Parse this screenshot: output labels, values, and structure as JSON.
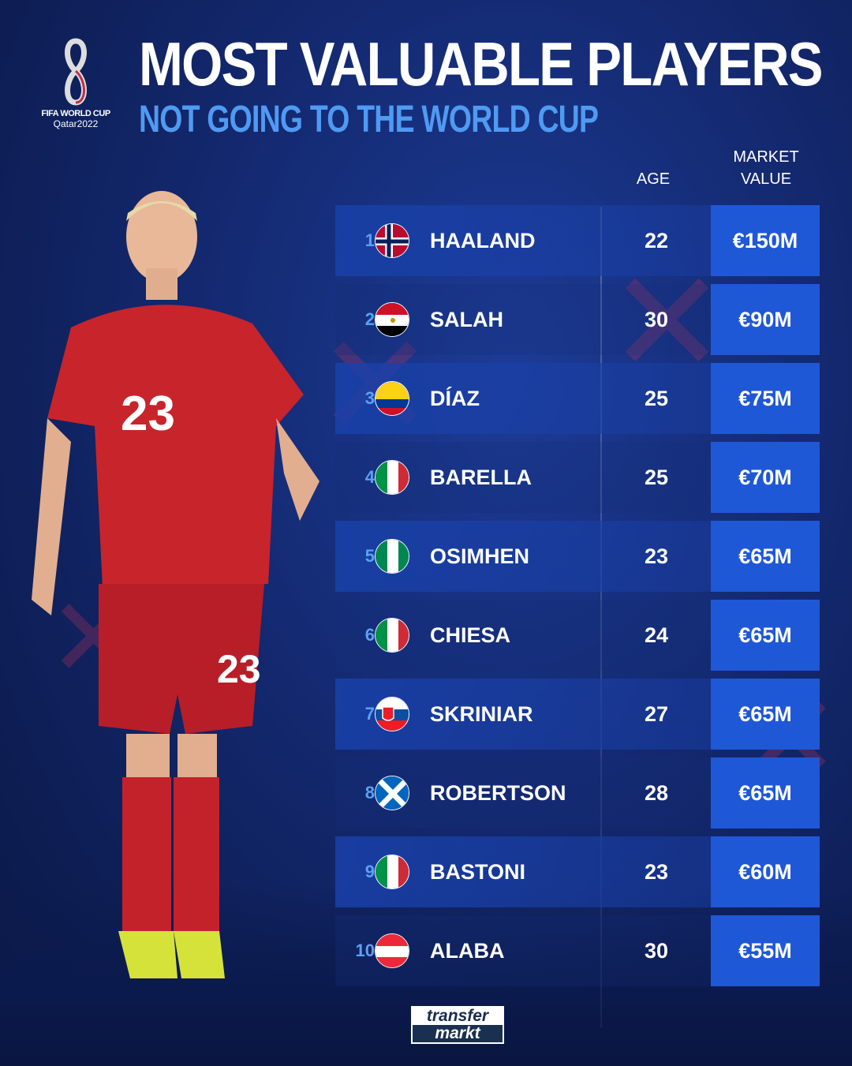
{
  "logo": {
    "line1": "FIFA WORLD CUP",
    "line2": "Qatar2022"
  },
  "title": "MOST VALUABLE PLAYERS",
  "subtitle": "NOT GOING TO THE WORLD CUP",
  "headers": {
    "age": "AGE",
    "market_value_1": "MARKET",
    "market_value_2": "VALUE"
  },
  "colors": {
    "accent": "#4f9af2",
    "value_box": "#1f58d6",
    "background": "#13286e"
  },
  "players": [
    {
      "rank": "1",
      "flag": "norway",
      "name": "HAALAND",
      "age": "22",
      "value": "€150M"
    },
    {
      "rank": "2",
      "flag": "egypt",
      "name": "SALAH",
      "age": "30",
      "value": "€90M"
    },
    {
      "rank": "3",
      "flag": "colombia",
      "name": "DÍAZ",
      "age": "25",
      "value": "€75M"
    },
    {
      "rank": "4",
      "flag": "italy",
      "name": "BARELLA",
      "age": "25",
      "value": "€70M"
    },
    {
      "rank": "5",
      "flag": "nigeria",
      "name": "OSIMHEN",
      "age": "23",
      "value": "€65M"
    },
    {
      "rank": "6",
      "flag": "italy",
      "name": "CHIESA",
      "age": "24",
      "value": "€65M"
    },
    {
      "rank": "7",
      "flag": "slovakia",
      "name": "SKRINIAR",
      "age": "27",
      "value": "€65M"
    },
    {
      "rank": "8",
      "flag": "scotland",
      "name": "ROBERTSON",
      "age": "28",
      "value": "€65M"
    },
    {
      "rank": "9",
      "flag": "italy",
      "name": "BASTONI",
      "age": "23",
      "value": "€60M"
    },
    {
      "rank": "10",
      "flag": "austria",
      "name": "ALABA",
      "age": "30",
      "value": "€55M"
    }
  ],
  "player_photo": {
    "shirt_number": "23"
  },
  "brand": {
    "line1": "transfer",
    "line2": "markt"
  }
}
